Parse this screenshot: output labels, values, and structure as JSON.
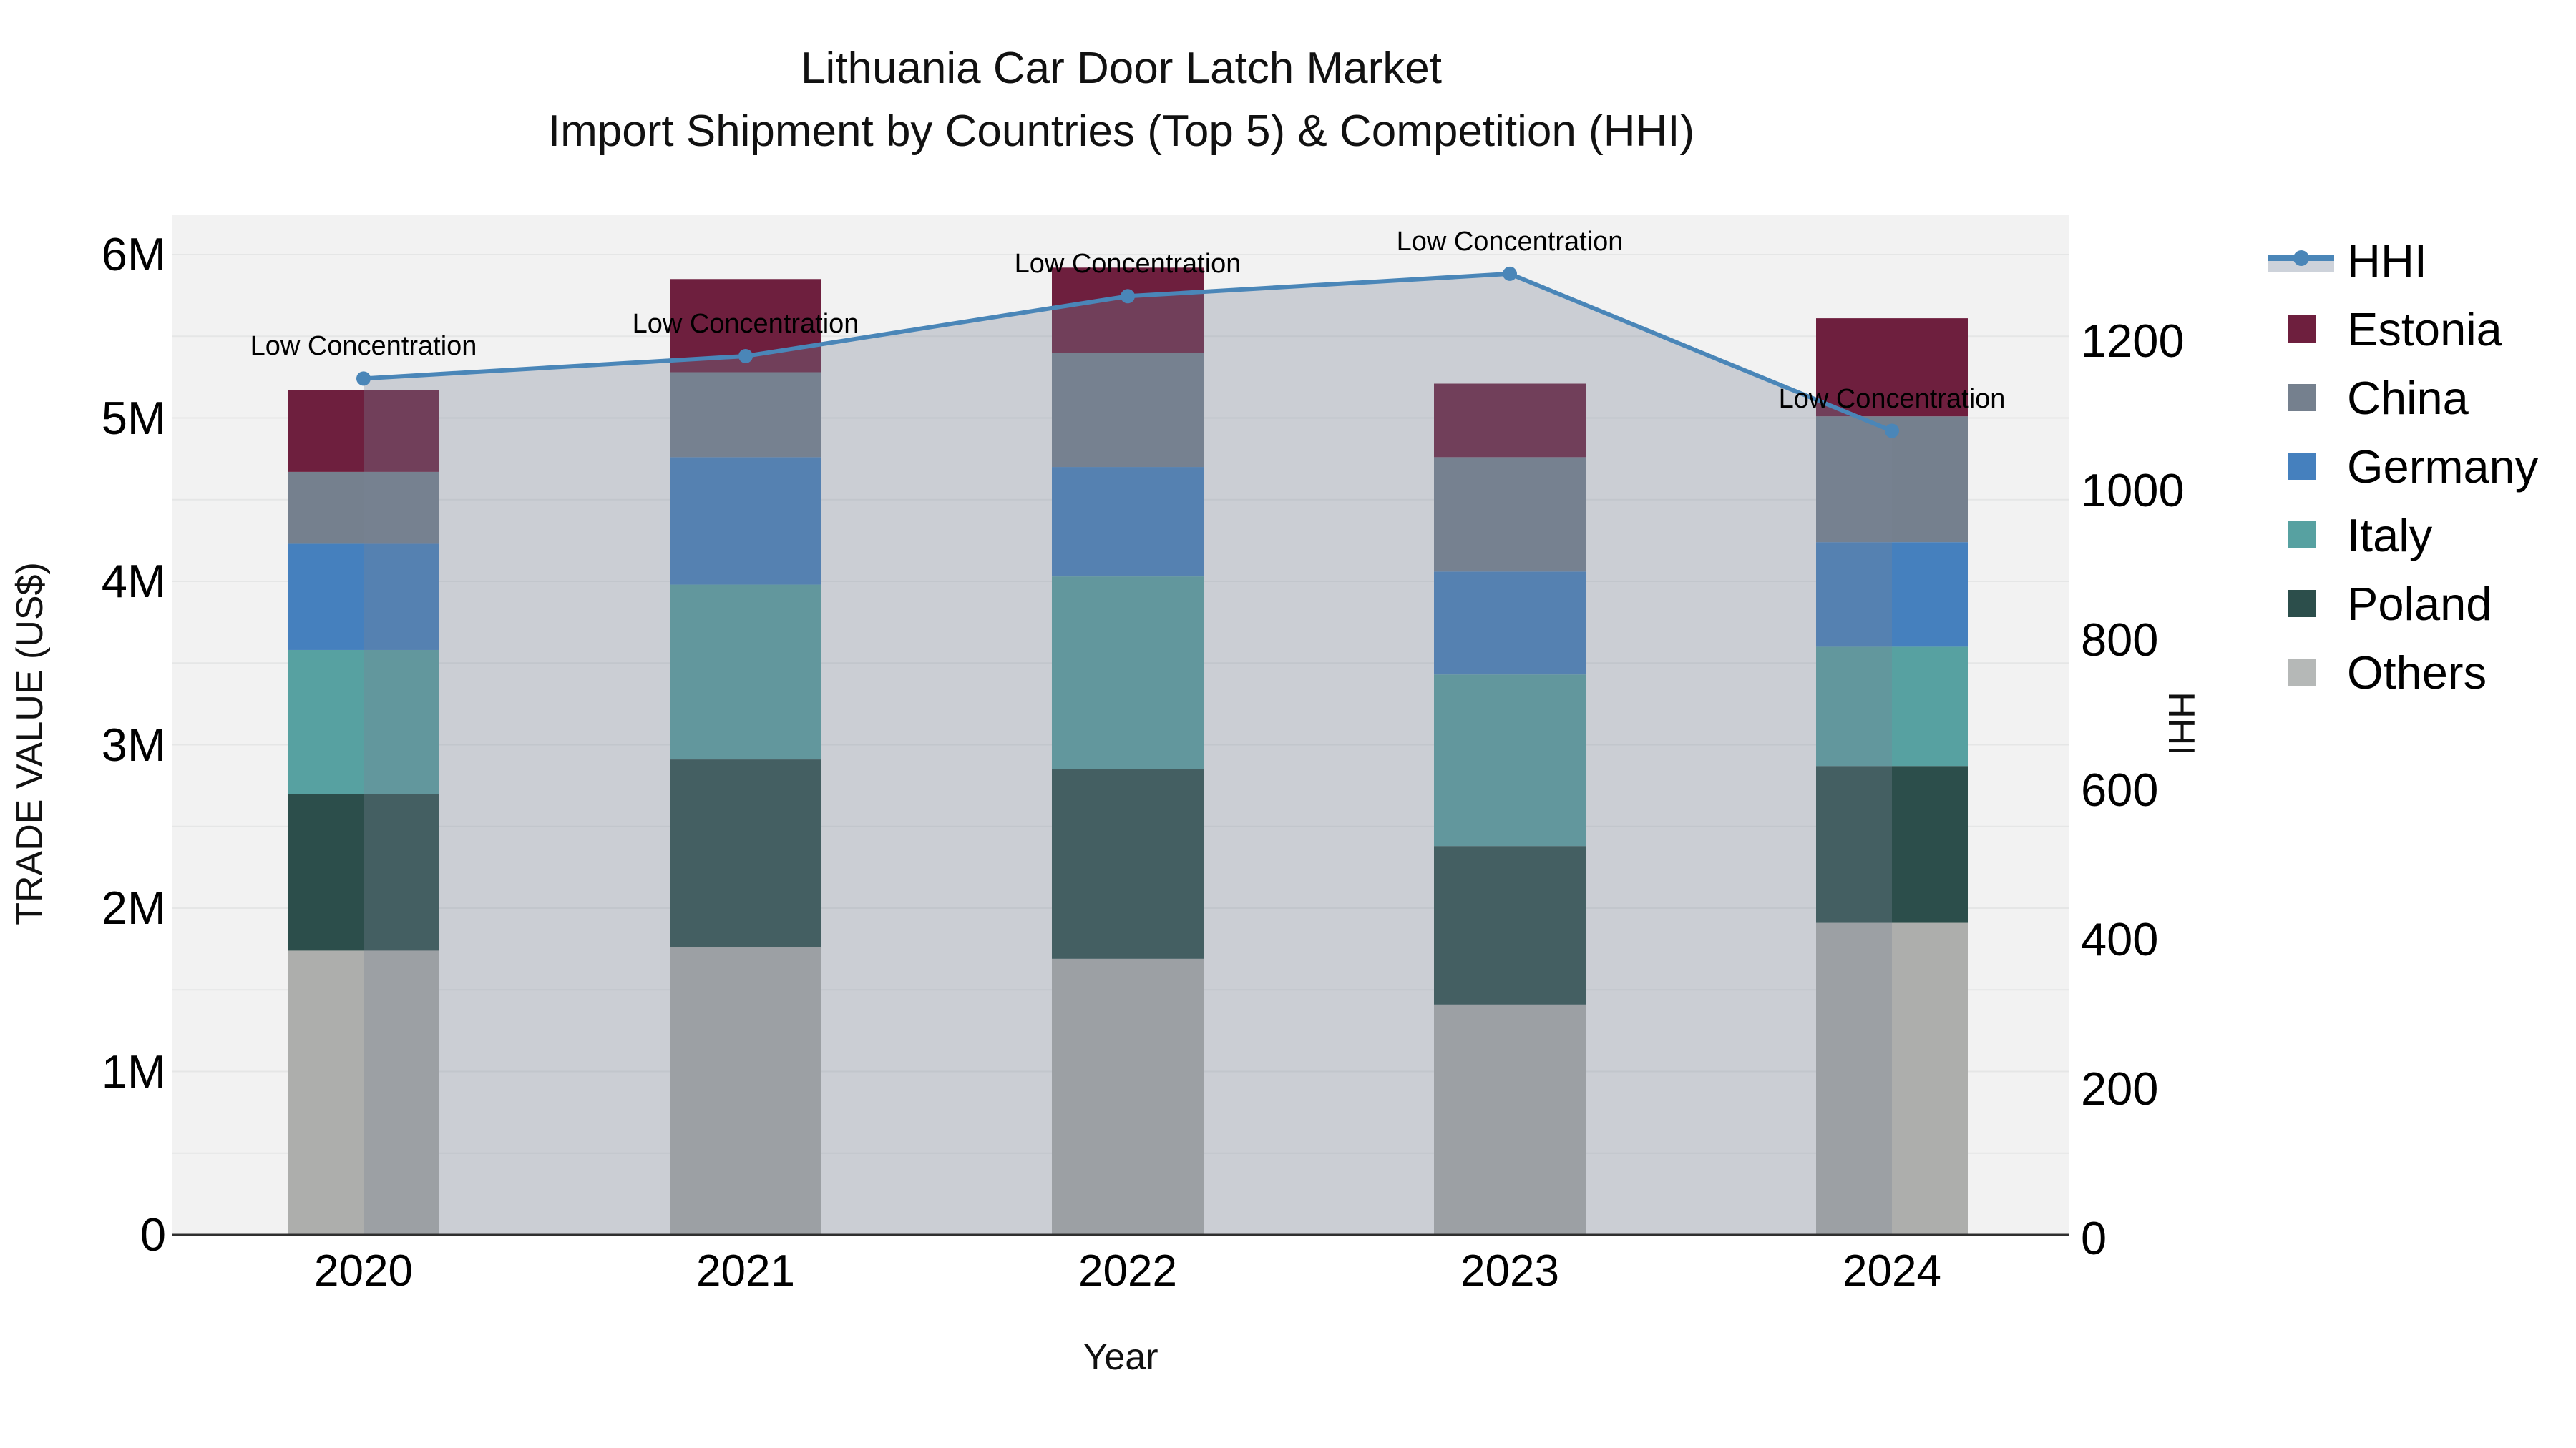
{
  "title": {
    "line1": "Lithuania Car Door Latch Market",
    "line2": "Import Shipment by Countries (Top 5) & Competition (HHI)"
  },
  "chart_data": {
    "type": "bar",
    "stacked": true,
    "grid": true,
    "categories": [
      "2020",
      "2021",
      "2022",
      "2023",
      "2024"
    ],
    "value_unit": "million US$",
    "series": [
      {
        "name": "Others",
        "color": "#adaeac",
        "values": [
          1.74,
          1.76,
          1.69,
          1.41,
          1.91
        ]
      },
      {
        "name": "Poland",
        "color": "#2c4e4b",
        "values": [
          0.96,
          1.15,
          1.16,
          0.97,
          0.96
        ]
      },
      {
        "name": "Italy",
        "color": "#57a1a1",
        "values": [
          0.88,
          1.07,
          1.18,
          1.05,
          0.73
        ]
      },
      {
        "name": "Germany",
        "color": "#4580be",
        "values": [
          0.65,
          0.78,
          0.67,
          0.63,
          0.64
        ]
      },
      {
        "name": "China",
        "color": "#75808e",
        "values": [
          0.44,
          0.52,
          0.7,
          0.7,
          0.77
        ]
      },
      {
        "name": "Estonia",
        "color": "#6e1f3e",
        "values": [
          0.5,
          0.57,
          0.52,
          0.45,
          0.6
        ]
      }
    ],
    "bar_totals": [
      5.17,
      5.85,
      5.92,
      5.21,
      5.61
    ],
    "line": {
      "name": "HHI",
      "color": "#4a86b8",
      "area_fill": "rgba(120,131,149,0.32)",
      "values": [
        1150,
        1180,
        1260,
        1290,
        1080
      ]
    },
    "annotations": [
      "Low Concentration",
      "Low Concentration",
      "Low Concentration",
      "Low Concentration",
      "Low Concentration"
    ],
    "y_left": {
      "label": "TRADE VALUE (US$)",
      "range": [
        0,
        6.3
      ],
      "ticks": [
        {
          "label": "0",
          "value": 0
        },
        {
          "label": "1M",
          "value": 1
        },
        {
          "label": "2M",
          "value": 2
        },
        {
          "label": "3M",
          "value": 3
        },
        {
          "label": "4M",
          "value": 4
        },
        {
          "label": "5M",
          "value": 5
        },
        {
          "label": "6M",
          "value": 6
        }
      ]
    },
    "y_right": {
      "label": "HHI",
      "range": [
        0,
        1380
      ],
      "ticks": [
        {
          "label": "0",
          "value": 0
        },
        {
          "label": "200",
          "value": 200
        },
        {
          "label": "400",
          "value": 400
        },
        {
          "label": "600",
          "value": 600
        },
        {
          "label": "800",
          "value": 800
        },
        {
          "label": "1000",
          "value": 1000
        },
        {
          "label": "1200",
          "value": 1200
        }
      ]
    },
    "x_axis": {
      "label": "Year"
    },
    "legend": [
      {
        "label": "HHI",
        "type": "line",
        "color": "#4a86b8"
      },
      {
        "label": "Estonia",
        "type": "square",
        "color": "#6e1f3e"
      },
      {
        "label": "China",
        "type": "square",
        "color": "#75808e"
      },
      {
        "label": "Germany",
        "type": "square",
        "color": "#4580be"
      },
      {
        "label": "Italy",
        "type": "square",
        "color": "#57a1a1"
      },
      {
        "label": "Poland",
        "type": "square",
        "color": "#2c4e4b"
      },
      {
        "label": "Others",
        "type": "square",
        "color": "#b5b8b7"
      }
    ],
    "colors": {
      "plot_background": "#f2f2f2",
      "gridline": "#e5e6e6",
      "axis_line": "#2f2f2f"
    }
  }
}
